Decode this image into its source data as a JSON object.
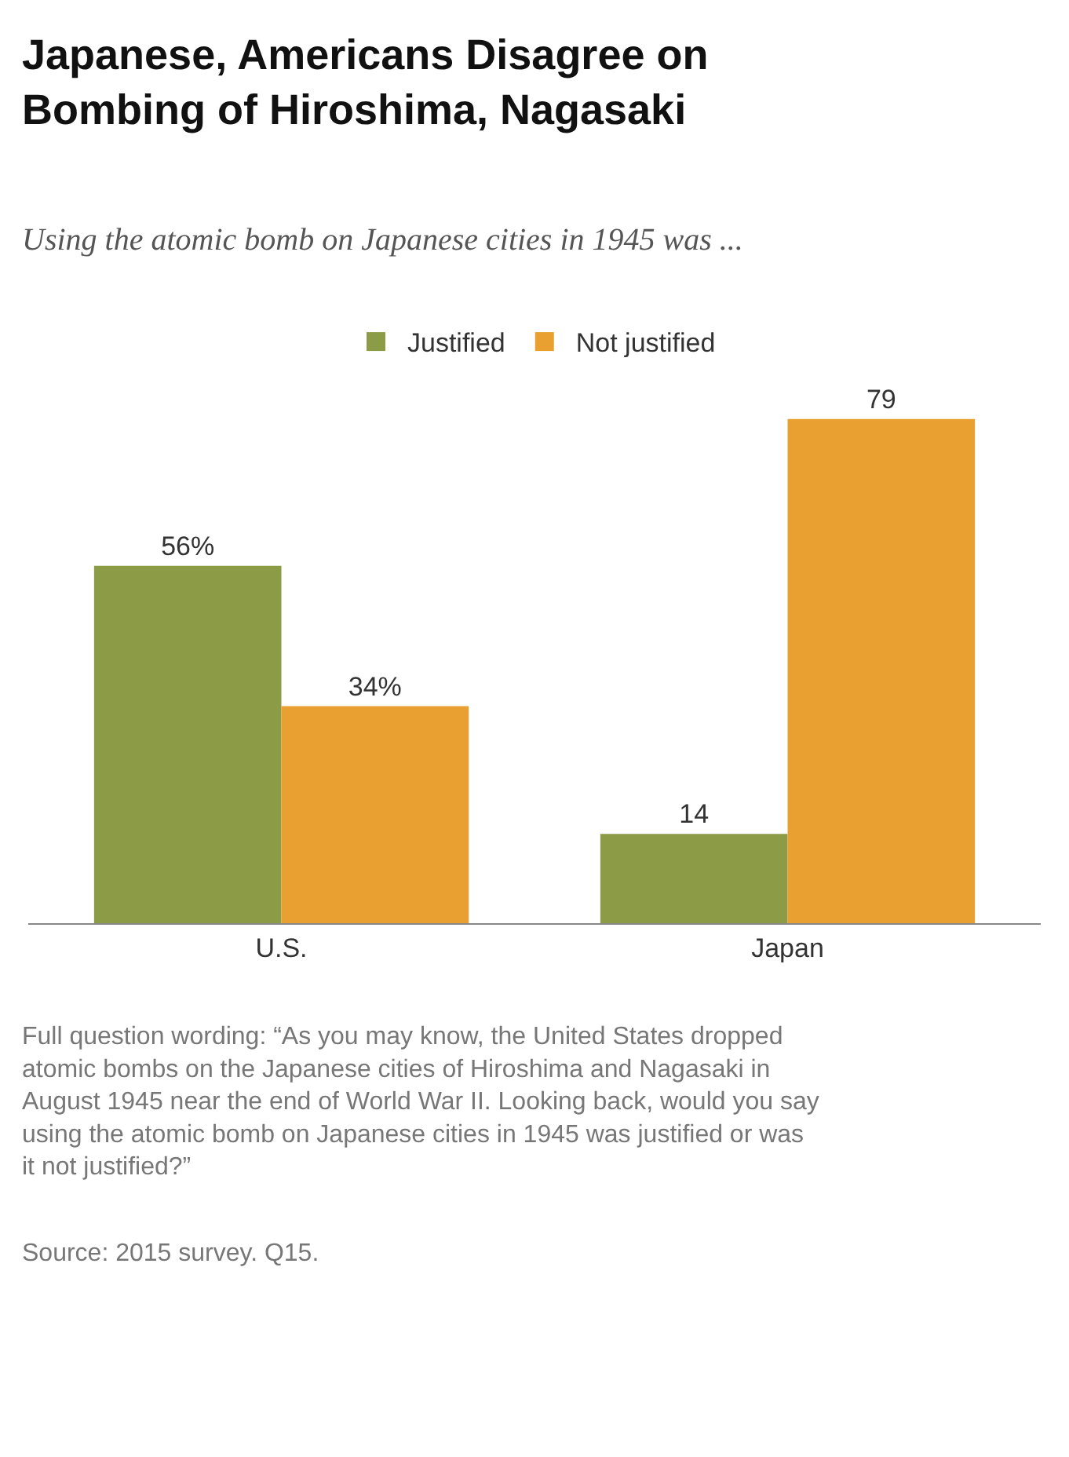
{
  "chart_data": {
    "type": "bar",
    "title": "Japanese, Americans Disagree on Bombing of Hiroshima, Nagasaki",
    "subtitle": "Using the atomic bomb on Japanese cities in 1945 was ...",
    "categories": [
      "U.S.",
      "Japan"
    ],
    "series": [
      {
        "name": "Justified",
        "color": "#8c9b45",
        "values": [
          56,
          14
        ],
        "value_labels": [
          "56%",
          "14"
        ]
      },
      {
        "name": "Not justified",
        "color": "#e9a030",
        "values": [
          34,
          79
        ],
        "value_labels": [
          "34%",
          "79"
        ]
      }
    ],
    "legend": "top",
    "annotations": [
      "Full question wording: “As you may know, the United States dropped atomic bombs on the Japanese cities of Hiroshima and Nagasaki in August 1945 near the end of World War II. Looking back, would you say using the atomic bomb on Japanese cities in 1945 was justified or was it not justified?”",
      "Source: 2015 survey. Q15."
    ]
  }
}
